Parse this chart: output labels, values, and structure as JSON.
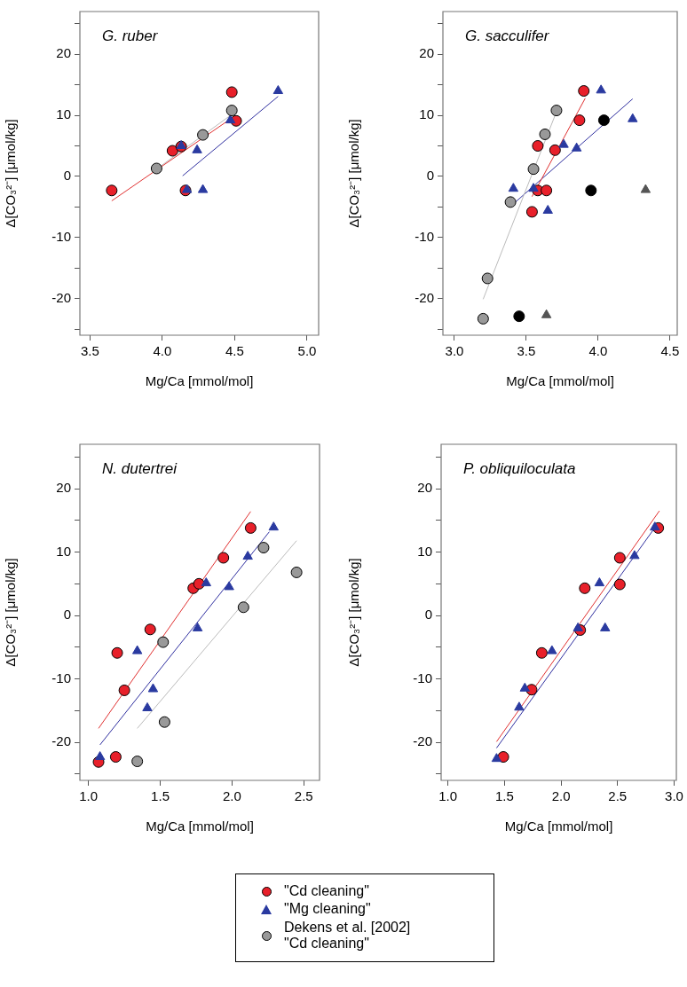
{
  "chart_data": [
    {
      "type": "scatter",
      "title": "G. ruber",
      "xlabel": "Mg/Ca [mmol/mol]",
      "ylabel": "Δ[CO₃²⁻] [μmol/kg]",
      "xlim": [
        3.43,
        5.08
      ],
      "xticks": [
        3.5,
        {
          "value": 4,
          "label": "4.0"
        },
        4.5,
        {
          "value": 5,
          "label": "5.0"
        }
      ],
      "ylim": [
        -26,
        27
      ],
      "yticks": [
        {
          "value": -25,
          "label": null
        },
        -20,
        {
          "value": -15,
          "label": null
        },
        -10,
        {
          "value": -5,
          "label": null
        },
        0,
        {
          "value": 5,
          "label": null
        },
        10,
        {
          "value": 15,
          "label": null
        },
        20,
        {
          "value": 25,
          "label": null
        }
      ],
      "legend": "bottom",
      "series": [
        {
          "name": "\"Cd cleaning\"",
          "color": "#e8202a",
          "marker": "circle",
          "x": [
            3.65,
            4.07,
            4.13,
            4.48,
            4.51,
            4.16
          ],
          "values": [
            -2.3,
            4.2,
            4.9,
            13.8,
            9.1,
            -2.3
          ]
        },
        {
          "name": "\"Mg cleaning\"",
          "color": "#2a3aa0",
          "marker": "triangle",
          "x": [
            4.13,
            4.24,
            4.47,
            4.8,
            4.17,
            4.28
          ],
          "values": [
            5.0,
            4.3,
            9.2,
            14.0,
            -2.2,
            -2.2
          ]
        },
        {
          "name": "Dekens et al. [2002]\n\"Cd cleaning\"",
          "color": "#999999",
          "marker": "circle",
          "x": [
            3.96,
            4.28,
            4.48
          ],
          "values": [
            1.3,
            6.8,
            10.8
          ]
        },
        {
          "type": "line",
          "color": "#e03030",
          "marker": "none",
          "x": [
            3.65,
            4.47
          ],
          "values": [
            -4.0,
            9.4
          ]
        },
        {
          "type": "line",
          "color": "#bbbbbb",
          "marker": "none",
          "x": [
            3.96,
            4.5
          ],
          "values": [
            1.2,
            10.5
          ]
        },
        {
          "type": "line",
          "color": "#3030a0",
          "marker": "none",
          "x": [
            4.14,
            4.8
          ],
          "values": [
            0.1,
            13.1
          ]
        }
      ]
    },
    {
      "type": "scatter",
      "title": "G. sacculifer",
      "xlabel": "Mg/Ca [mmol/mol]",
      "ylabel": "Δ[CO₃²⁻] [μmol/kg]",
      "xlim": [
        2.92,
        4.55
      ],
      "xticks": [
        {
          "value": 3,
          "label": "3.0"
        },
        3.5,
        {
          "value": 4,
          "label": "4.0"
        },
        4.5
      ],
      "ylim": [
        -26,
        27
      ],
      "yticks": [
        {
          "value": -25,
          "label": null
        },
        -20,
        {
          "value": -15,
          "label": null
        },
        -10,
        {
          "value": -5,
          "label": null
        },
        0,
        {
          "value": 5,
          "label": null
        },
        10,
        {
          "value": 15,
          "label": null
        },
        20,
        {
          "value": 25,
          "label": null
        }
      ],
      "series": [
        {
          "color": "#e8202a",
          "marker": "circle",
          "x": [
            3.9,
            3.87,
            3.58,
            3.7,
            3.58,
            3.64,
            3.54
          ],
          "values": [
            14.0,
            9.2,
            5.0,
            4.3,
            -2.3,
            -2.3,
            -5.8
          ]
        },
        {
          "color": "#2a3aa0",
          "marker": "triangle",
          "x": [
            4.02,
            4.24,
            3.76,
            3.85,
            3.41,
            3.55,
            3.65
          ],
          "values": [
            14.1,
            9.4,
            5.2,
            4.6,
            -2.0,
            -2.0,
            -5.6
          ]
        },
        {
          "color": "#999999",
          "marker": "circle",
          "x": [
            3.71,
            3.63,
            3.55,
            3.39,
            3.23,
            3.2
          ],
          "values": [
            10.8,
            6.9,
            1.2,
            -4.2,
            -16.7,
            -23.3
          ]
        },
        {
          "color": "#000000",
          "marker": "circle",
          "x": [
            3.95,
            4.04,
            3.45
          ],
          "values": [
            -2.3,
            9.2,
            -22.9
          ]
        },
        {
          "color": "#555555",
          "marker": "triangle",
          "x": [
            4.33,
            3.64
          ],
          "values": [
            -2.2,
            -22.7
          ]
        },
        {
          "type": "line",
          "color": "#bbbbbb",
          "marker": "none",
          "x": [
            3.2,
            3.72
          ],
          "values": [
            -20.1,
            11.2
          ]
        },
        {
          "type": "line",
          "color": "#e03030",
          "marker": "none",
          "x": [
            3.54,
            3.91
          ],
          "values": [
            -3.3,
            12.8
          ]
        },
        {
          "type": "line",
          "color": "#3030a0",
          "marker": "none",
          "x": [
            3.41,
            4.24
          ],
          "values": [
            -4.5,
            12.7
          ]
        }
      ]
    },
    {
      "type": "scatter",
      "title": "N. dutertrei",
      "xlabel": "Mg/Ca [mmol/mol]",
      "ylabel": "Δ[CO₃²⁻] [μmol/kg]",
      "xlim": [
        0.94,
        2.61
      ],
      "xticks": [
        {
          "value": 1,
          "label": "1.0"
        },
        1.5,
        {
          "value": 2,
          "label": "2.0"
        },
        2.5
      ],
      "ylim": [
        -26,
        27
      ],
      "yticks": [
        {
          "value": -25,
          "label": null
        },
        -20,
        {
          "value": -15,
          "label": null
        },
        -10,
        {
          "value": -5,
          "label": null
        },
        0,
        {
          "value": 5,
          "label": null
        },
        10,
        {
          "value": 15,
          "label": null
        },
        20,
        {
          "value": 25,
          "label": null
        }
      ],
      "series": [
        {
          "color": "#e8202a",
          "marker": "circle",
          "x": [
            2.13,
            1.94,
            1.73,
            1.77,
            1.43,
            1.2,
            1.25,
            1.07,
            1.19
          ],
          "values": [
            13.8,
            9.1,
            4.3,
            5.0,
            -2.2,
            -5.9,
            -11.8,
            -23.1,
            -22.3
          ]
        },
        {
          "color": "#2a3aa0",
          "marker": "triangle",
          "x": [
            2.29,
            2.11,
            1.82,
            1.98,
            1.76,
            1.34,
            1.45,
            1.41,
            1.08
          ],
          "values": [
            13.9,
            9.3,
            5.1,
            4.5,
            -2.0,
            -5.6,
            -11.6,
            -14.6,
            -22.3
          ]
        },
        {
          "color": "#999999",
          "marker": "circle",
          "x": [
            2.22,
            2.45,
            2.08,
            1.52,
            1.53,
            1.34
          ],
          "values": [
            10.7,
            6.8,
            1.3,
            -4.2,
            -16.8,
            -23.0
          ]
        },
        {
          "type": "line",
          "color": "#e03030",
          "marker": "none",
          "x": [
            1.07,
            2.13
          ],
          "values": [
            -17.8,
            16.4
          ]
        },
        {
          "type": "line",
          "color": "#3030a0",
          "marker": "none",
          "x": [
            1.08,
            2.26
          ],
          "values": [
            -20.4,
            13.2
          ]
        },
        {
          "type": "line",
          "color": "#bbbbbb",
          "marker": "none",
          "x": [
            1.34,
            2.45
          ],
          "values": [
            -17.8,
            11.8
          ]
        }
      ]
    },
    {
      "type": "scatter",
      "title": "P. obliquiloculata",
      "xlabel": "Mg/Ca [mmol/mol]",
      "ylabel": "Δ[CO₃²⁻] [μmol/kg]",
      "xlim": [
        0.94,
        3.02
      ],
      "xticks": [
        {
          "value": 1,
          "label": "1.0"
        },
        1.5,
        {
          "value": 2,
          "label": "2.0"
        },
        2.5,
        {
          "value": 3,
          "label": "3.0"
        }
      ],
      "ylim": [
        -26,
        27
      ],
      "yticks": [
        {
          "value": -25,
          "label": null
        },
        -20,
        {
          "value": -15,
          "label": null
        },
        -10,
        {
          "value": -5,
          "label": null
        },
        0,
        {
          "value": 5,
          "label": null
        },
        10,
        {
          "value": 15,
          "label": null
        },
        20,
        {
          "value": 25,
          "label": null
        }
      ],
      "series": [
        {
          "color": "#e8202a",
          "marker": "circle",
          "x": [
            2.86,
            2.52,
            2.52,
            2.21,
            2.17,
            1.83,
            1.74,
            1.49
          ],
          "values": [
            13.8,
            9.1,
            4.9,
            4.3,
            -2.3,
            -5.9,
            -11.7,
            -22.3
          ]
        },
        {
          "color": "#2a3aa0",
          "marker": "triangle",
          "x": [
            2.83,
            2.65,
            2.34,
            2.39,
            2.15,
            1.92,
            1.68,
            1.63,
            1.43
          ],
          "values": [
            13.9,
            9.4,
            5.1,
            -2.0,
            -2.0,
            -5.6,
            -11.5,
            -14.5,
            -22.6
          ]
        },
        {
          "type": "line",
          "color": "#e03030",
          "marker": "none",
          "x": [
            1.43,
            2.87
          ],
          "values": [
            -19.9,
            16.5
          ]
        },
        {
          "type": "line",
          "color": "#3030a0",
          "marker": "none",
          "x": [
            1.43,
            2.84
          ],
          "values": [
            -20.9,
            14.1
          ]
        }
      ]
    }
  ]
}
